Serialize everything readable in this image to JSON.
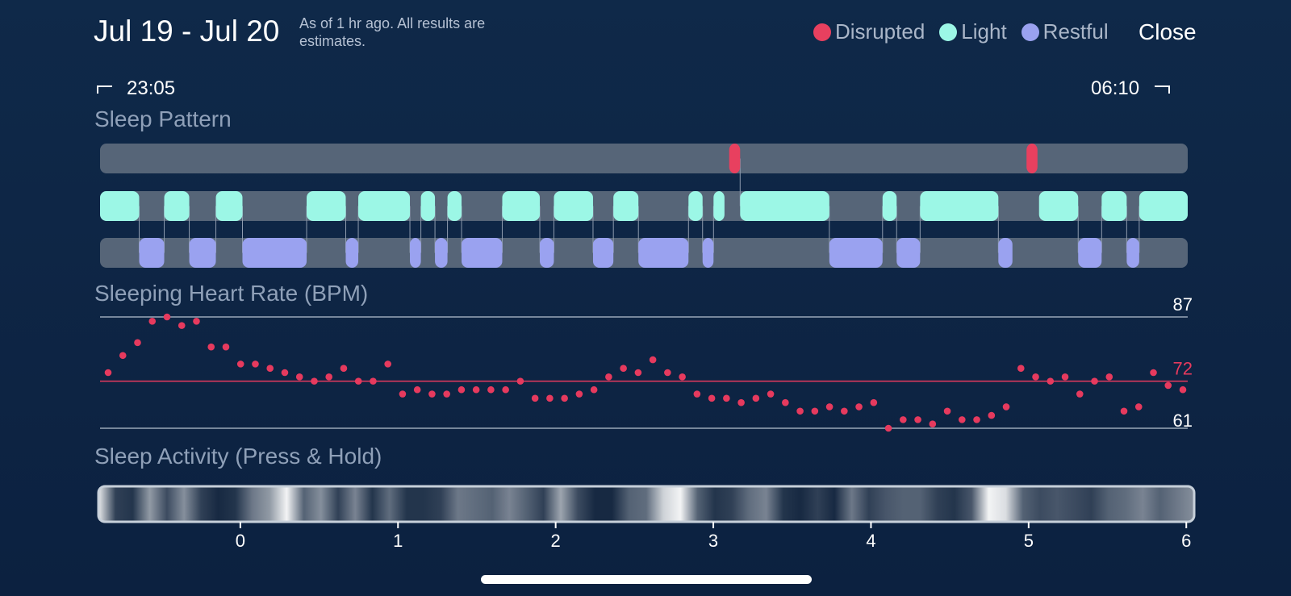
{
  "header": {
    "title": "Jul 19 - Jul 20",
    "subtitle": "As of 1 hr ago. All results are estimates.",
    "close_label": "Close"
  },
  "legend": [
    {
      "label": "Disrupted",
      "color": "#e8405f"
    },
    {
      "label": "Light",
      "color": "#9cf7e6"
    },
    {
      "label": "Restful",
      "color": "#9aa2f0"
    }
  ],
  "time_range": {
    "start": "23:05",
    "end": "06:10"
  },
  "sections": {
    "sleep_pattern": "Sleep Pattern",
    "heart_rate": "Sleeping Heart Rate (BPM)",
    "activity": "Sleep Activity (Press & Hold)"
  },
  "sleep_pattern": {
    "hours_start": -0.9,
    "hours_end": 6.05,
    "disrupted": [
      [
        3.12,
        3.19
      ],
      [
        5.02,
        5.09
      ]
    ],
    "light": [
      [
        -0.9,
        -0.65
      ],
      [
        -0.49,
        -0.33
      ],
      [
        -0.16,
        0.01
      ],
      [
        0.42,
        0.67
      ],
      [
        0.75,
        1.08
      ],
      [
        1.15,
        1.24
      ],
      [
        1.32,
        1.41
      ],
      [
        1.67,
        1.91
      ],
      [
        2.0,
        2.25
      ],
      [
        2.38,
        2.54
      ],
      [
        2.86,
        2.95
      ],
      [
        3.02,
        3.09
      ],
      [
        3.19,
        3.76
      ],
      [
        4.1,
        4.19
      ],
      [
        4.34,
        4.84
      ],
      [
        5.1,
        5.35
      ],
      [
        5.5,
        5.66
      ],
      [
        5.74,
        6.05
      ]
    ],
    "restful": [
      [
        -0.65,
        -0.49
      ],
      [
        -0.33,
        -0.16
      ],
      [
        0.01,
        0.42
      ],
      [
        0.67,
        0.75
      ],
      [
        1.08,
        1.15
      ],
      [
        1.24,
        1.32
      ],
      [
        1.41,
        1.67
      ],
      [
        1.91,
        2.0
      ],
      [
        2.25,
        2.38
      ],
      [
        2.54,
        2.86
      ],
      [
        2.95,
        3.02
      ],
      [
        3.76,
        4.1
      ],
      [
        4.19,
        4.34
      ],
      [
        4.84,
        4.93
      ],
      [
        5.35,
        5.5
      ],
      [
        5.66,
        5.74
      ]
    ]
  },
  "heart_rate": {
    "max_label": "87",
    "avg_label": "72",
    "min_label": "61",
    "max": 87,
    "avg": 72,
    "min": 61,
    "values": [
      74,
      78,
      81,
      86,
      87,
      85,
      86,
      80,
      80,
      76,
      76,
      75,
      74,
      73,
      72,
      73,
      75,
      72,
      72,
      76,
      69,
      70,
      69,
      69,
      70,
      70,
      70,
      70,
      72,
      68,
      68,
      68,
      69,
      70,
      73,
      75,
      74,
      77,
      74,
      73,
      69,
      68,
      68,
      67,
      68,
      69,
      67,
      65,
      65,
      66,
      65,
      66,
      67,
      61,
      63,
      63,
      62,
      65,
      63,
      63,
      64,
      66,
      75,
      73,
      72,
      73,
      69,
      72,
      73,
      65,
      66,
      74,
      71,
      70
    ]
  },
  "activity": {
    "levels": [
      0.9,
      0.15,
      0.1,
      0.55,
      0.2,
      0.5,
      0.15,
      0.05,
      0.1,
      0.4,
      0.55,
      0.95,
      0.3,
      0.5,
      0.15,
      0.45,
      0.1,
      0.35,
      0.1,
      0.1,
      0.15,
      0.4,
      0.35,
      0.3,
      0.45,
      0.3,
      0.15,
      0.6,
      0.2,
      0.05,
      0.05,
      0.3,
      0.35,
      0.8,
      0.95,
      0.3,
      0.1,
      0.15,
      0.35,
      0.45,
      0.1,
      0.05,
      0.15,
      0.05,
      0.4,
      0.15,
      0.25,
      0.3,
      0.3,
      0.15,
      0.1,
      0.25,
      0.95,
      0.85,
      0.3,
      0.2,
      0.25,
      0.2,
      0.15,
      0.3,
      0.35,
      0.45,
      0.3,
      0.4,
      0.5
    ],
    "ticks": [
      "0",
      "1",
      "2",
      "3",
      "4",
      "5",
      "6"
    ]
  },
  "colors": {
    "track": "#566578",
    "disrupted": "#e8405f",
    "light": "#9cf7e6",
    "restful": "#9aa2f0",
    "heart_dot": "#e63a5e",
    "grid_line": "#9aa8b8"
  }
}
